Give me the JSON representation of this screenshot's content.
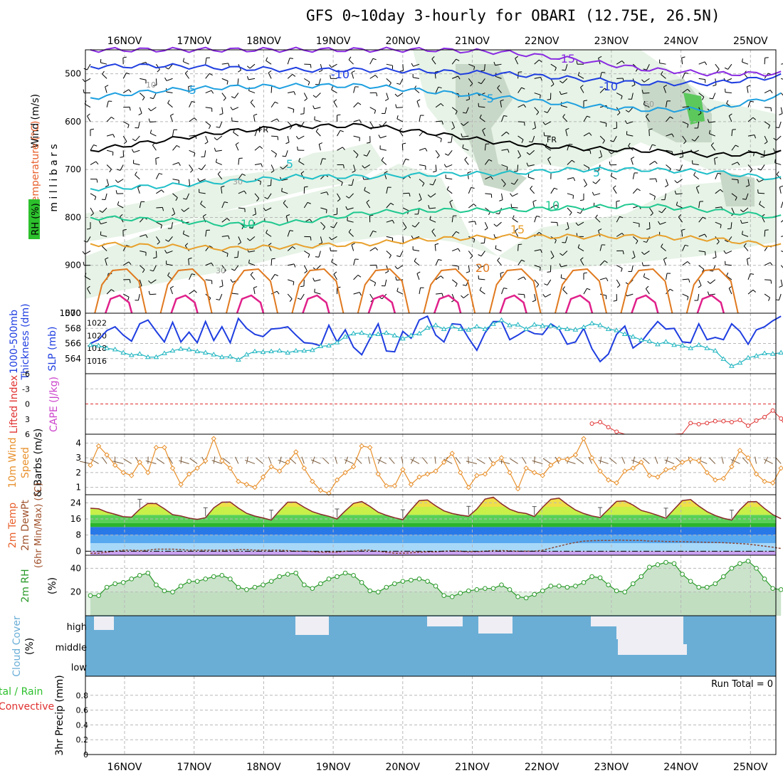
{
  "title": "GFS 0~10day 3-hourly for OBARI (12.75E, 26.5N)",
  "dates": [
    "16NOV",
    "17NOV",
    "18NOV",
    "19NOV",
    "20NOV",
    "21NOV",
    "22NOV",
    "23NOV",
    "24NOV",
    "25NOV"
  ],
  "colors": {
    "temp_label": "#e8602c",
    "wind_label": "#000000",
    "rh_fill": "#2cc02c",
    "thickness": "#1f3ee0",
    "slp": "#1fb5c0",
    "lifted": "#e03030",
    "cape": "#cc44cc",
    "wind10": "#e8902c",
    "rh2m": "#2a9a2a",
    "cloud": "#6aaed6",
    "precip": "#2cc02c"
  },
  "chart_data": [
    {
      "panel": "upper_air",
      "type": "line",
      "ylabel_parts": [
        "Wind (m/s)",
        "Temperature (°C)",
        "RH (%)"
      ],
      "yaxis_title": "m i l l i b a r s",
      "yticks": [
        "500",
        "600",
        "700",
        "800",
        "900",
        "1000"
      ],
      "ylim": [
        1000,
        450
      ],
      "isotherm_labels": [
        "-15",
        "-10",
        "-10",
        "-5",
        "-5",
        "FR",
        "FR",
        "5",
        "5",
        "10",
        "10",
        "15",
        "20"
      ],
      "rh_labels": [
        "10",
        "30",
        "30",
        "50"
      ],
      "isotherms": [
        {
          "name": "-15",
          "values": [
            450,
            450,
            450,
            450,
            450,
            450,
            455,
            470,
            490,
            500,
            500
          ]
        },
        {
          "name": "-10",
          "values": [
            485,
            483,
            488,
            492,
            492,
            495,
            500,
            510,
            520,
            520,
            505
          ]
        },
        {
          "name": "-5",
          "values": [
            550,
            535,
            528,
            525,
            525,
            538,
            550,
            565,
            575,
            575,
            545
          ]
        },
        {
          "name": "FR",
          "values": [
            660,
            640,
            620,
            610,
            608,
            625,
            645,
            655,
            660,
            670,
            665
          ]
        },
        {
          "name": "5",
          "values": [
            740,
            735,
            725,
            715,
            715,
            710,
            708,
            700,
            700,
            705,
            720
          ]
        },
        {
          "name": "10",
          "values": [
            800,
            805,
            815,
            810,
            790,
            785,
            785,
            780,
            775,
            785,
            800
          ]
        },
        {
          "name": "15",
          "values": [
            855,
            860,
            865,
            860,
            855,
            845,
            840,
            840,
            840,
            845,
            860
          ]
        }
      ]
    },
    {
      "panel": "thickness_slp",
      "type": "line",
      "ylabel": [
        "1000-500mb",
        "Thickness (dm)"
      ],
      "ylabel_right": "SLP (mb)",
      "yticks_left": [
        "570",
        "568",
        "566",
        "564"
      ],
      "yticks_right": [
        "1022",
        "1020",
        "1018",
        "1016"
      ],
      "series": [
        {
          "name": "Thickness (dm)",
          "values": [
            566,
            566.5,
            567.7,
            568.2,
            567.1,
            566.3,
            568.6,
            569.1,
            567.6,
            566.2,
            568.8,
            566.2,
            567.5,
            566.1,
            568.9,
            566.4,
            568.2,
            566.1,
            569.3,
            568.0,
            567.2,
            566.9,
            567.9,
            568.0,
            568.2,
            567.1,
            566.1,
            566.0,
            565.7,
            568.4,
            566.2,
            567.8,
            565.5,
            564.5,
            566.6,
            568.6,
            565.0,
            564.9,
            567.6,
            566.7,
            569.1,
            569.6,
            567.1,
            566.2,
            568.6,
            568.5,
            566.7,
            565.1,
            567.4,
            568.9,
            568.9,
            566.5,
            567.1,
            567.8,
            567.3,
            567.2,
            568.6,
            567.9,
            565.9,
            566.2,
            568.0,
            565.3,
            563.6,
            564.6,
            567.2,
            568.3,
            565.4,
            566.2,
            567.6,
            568.9,
            567.9,
            568.0,
            566.2,
            566.1,
            568.6,
            566.5,
            566.8,
            566.5,
            568.6,
            567.6,
            565.9,
            567.8,
            568.2,
            569.0,
            569.6
          ]
        },
        {
          "name": "SLP (mb)",
          "values": [
            1018.5,
            1018.4,
            1018.0,
            1017.8,
            1017.3,
            1016.9,
            1017.1,
            1016.6,
            1016.6,
            1017.2,
            1017.6,
            1017.9,
            1017.8,
            1017.5,
            1017.3,
            1017.0,
            1016.6,
            1016.7,
            1016.2,
            1017.0,
            1017.5,
            1017.4,
            1017.5,
            1017.6,
            1017.3,
            1017.6,
            1017.6,
            1017.7,
            1018.3,
            1018.4,
            1018.9,
            1019.8,
            1020.3,
            1020.4,
            1020.0,
            1020.2,
            1020.4,
            1020.0,
            1019.5,
            1020.0,
            1020.3,
            1021.2,
            1021.6,
            1021.0,
            1021.4,
            1021.0,
            1020.9,
            1021.4,
            1021.0,
            1021.8,
            1022.4,
            1021.6,
            1021.7,
            1021.0,
            1021.7,
            1021.5,
            1021.5,
            1021.2,
            1021.0,
            1020.9,
            1021.3,
            1021.9,
            1021.6,
            1021.0,
            1020.8,
            1020.2,
            1019.8,
            1019.3,
            1019.1,
            1018.6,
            1019.0,
            1018.5,
            1018.4,
            1018.0,
            1018.5,
            1018.0,
            1017.6,
            1016.3,
            1015.2,
            1015.7,
            1016.5,
            1016.8,
            1017.2,
            1017.1,
            1017.3
          ]
        }
      ]
    },
    {
      "panel": "stability",
      "type": "line",
      "ylabel": [
        "Lifted Index",
        "CAPE (J/kg)"
      ],
      "yticks": [
        "-6",
        "-3",
        "0",
        "3",
        "6"
      ],
      "ylim": [
        -6,
        6
      ],
      "series": [
        {
          "name": "Lifted Index",
          "x_from": 61,
          "values": [
            3.9,
            3.6,
            4.6,
            5.5,
            6,
            6,
            6,
            6,
            6,
            6,
            6,
            5.9,
            3.8,
            4,
            3.8,
            3.4,
            3.4,
            3.6,
            3.2,
            4.3,
            3.3,
            2.6,
            1.3,
            2.9,
            6
          ]
        }
      ]
    },
    {
      "panel": "wind10m",
      "type": "line",
      "ylabel": [
        "10m Wind",
        "Speed",
        "& Barbs (m/s)"
      ],
      "yticks": [
        "1",
        "2",
        "3",
        "4"
      ],
      "ylim": [
        0.5,
        4.6
      ],
      "series": [
        {
          "name": "10m Wind Speed (m/s)",
          "values": [
            2.5,
            3.8,
            3.2,
            2.5,
            2.0,
            1.8,
            2.7,
            2.0,
            3.7,
            3.7,
            2.3,
            1.2,
            1.9,
            2.3,
            2.8,
            4.3,
            2.8,
            2.3,
            1.4,
            1.2,
            1.0,
            1.7,
            2.4,
            2.1,
            2.7,
            3.4,
            2.3,
            1.4,
            0.8,
            0.6,
            1.5,
            2.0,
            2.4,
            3.8,
            3.7,
            1.9,
            1.1,
            1.1,
            2.2,
            1.2,
            1.7,
            1.9,
            2.1,
            2.7,
            3.3,
            2.0,
            1.0,
            1.8,
            1.9,
            2.6,
            3.0,
            2.0,
            0.9,
            2.3,
            2.0,
            1.8,
            2.5,
            2.9,
            2.9,
            3.2,
            4.3,
            3.0,
            2.1,
            1.5,
            1.3,
            2.1,
            2.3,
            2.7,
            1.8,
            1.7,
            2.2,
            2.3,
            2.7,
            2.9,
            2.8,
            2.0,
            1.5,
            1.6,
            2.4,
            3.5,
            3.0,
            1.9,
            1.4,
            1.3,
            2.3
          ]
        }
      ]
    },
    {
      "panel": "temp2m",
      "type": "area",
      "ylabel": [
        "2m Temp",
        "2m DewPt",
        "(6hr Min/Max) (°C)"
      ],
      "yticks": [
        "0",
        "8",
        "16",
        "24"
      ],
      "ylim": [
        -2,
        28
      ],
      "series": [
        {
          "name": "2m Temp (°C)",
          "values": [
            21.3,
            21.0,
            19.4,
            18.3,
            17.1,
            16.9,
            20.8,
            23.7,
            23.6,
            21.0,
            18.1,
            17.5,
            16.4,
            15.8,
            16.6,
            21.5,
            24.3,
            24.4,
            21.4,
            18.8,
            17.4,
            16.5,
            15.4,
            20.1,
            24.3,
            24.3,
            21.8,
            19.6,
            18.3,
            17.3,
            16.0,
            20.0,
            23.7,
            24.6,
            22.2,
            19.3,
            17.8,
            16.6,
            15.6,
            20.6,
            25.1,
            25.4,
            22.5,
            20.0,
            18.7,
            17.9,
            17.3,
            20.9,
            25.8,
            26.8,
            23.5,
            20.8,
            19.3,
            18.7,
            17.2,
            21.8,
            25.7,
            26.3,
            23.2,
            20.4,
            18.7,
            17.5,
            16.7,
            20.7,
            24.7,
            24.9,
            22.9,
            20.2,
            19.1,
            17.8,
            16.4,
            20.8,
            25.1,
            25.6,
            22.4,
            19.6,
            17.7,
            16.3,
            15.4,
            20.6,
            24.5,
            24.6,
            21.2,
            18.1,
            16.1
          ]
        },
        {
          "name": "2m DewPt (°C)",
          "values": [
            -1,
            -1,
            -0.5,
            0,
            0.5,
            0.5,
            0.3,
            0.5,
            1,
            1,
            1,
            0.8,
            0.5,
            0.5,
            0.5,
            0.5,
            0.5,
            0.5,
            0.8,
            0.8,
            0.5,
            0.5,
            0.5,
            0.5,
            0.3,
            0,
            0,
            -0.2,
            -0.5,
            -0.5,
            -0.5,
            0,
            0,
            0.5,
            0.5,
            0,
            -0.5,
            -1,
            -1,
            -0.8,
            -0.5,
            -0.3,
            -0.3,
            0,
            0.2,
            0,
            -0.3,
            -0.2,
            0,
            0.3,
            0.3,
            0.2,
            0,
            0,
            0,
            0.5,
            1.5,
            2.5,
            3.5,
            4.3,
            5,
            5.2,
            5.3,
            5.3,
            5.5,
            5.4,
            5.3,
            5.3,
            5,
            5,
            4.8,
            4.8,
            4.7,
            4.6,
            4.5,
            4.4,
            4.3,
            4.2,
            4,
            3.8,
            3.5,
            3,
            2.5,
            2,
            1.3
          ]
        }
      ]
    },
    {
      "panel": "rh2m",
      "type": "area",
      "ylabel": [
        "2m RH",
        "(%)"
      ],
      "yticks": [
        "20",
        "40"
      ],
      "ylim": [
        0,
        51
      ],
      "series": [
        {
          "name": "2m RH (%)",
          "values": [
            17,
            17,
            24,
            27,
            28,
            31,
            34,
            36,
            26,
            21,
            20,
            25,
            29,
            29,
            31,
            33,
            34,
            31,
            24,
            22,
            24,
            26,
            29,
            33,
            35,
            36,
            26,
            23,
            27,
            31,
            33,
            36,
            34,
            28,
            21,
            20,
            24,
            27,
            29,
            30,
            31,
            29,
            25,
            17,
            16,
            19,
            21,
            22,
            23,
            23,
            26,
            22,
            16,
            15,
            18,
            21,
            25,
            25,
            24,
            25,
            28,
            33,
            32,
            26,
            21,
            20,
            27,
            33,
            41,
            43,
            45,
            44,
            35,
            29,
            24,
            24,
            27,
            33,
            40,
            44,
            46,
            40,
            31,
            23,
            22,
            28,
            33,
            35,
            36,
            36,
            35
          ]
        }
      ]
    },
    {
      "panel": "cloud_cover",
      "type": "area",
      "ylabel": [
        "Cloud Cover",
        "(%)"
      ],
      "yticks": [
        "high",
        "middle",
        "low"
      ]
    },
    {
      "panel": "precip",
      "type": "bar",
      "ylabel_parts": [
        "3hr Precip (mm)",
        "tal / Rain",
        "Convective"
      ],
      "yticks": [
        "0",
        "0.2",
        "0.4",
        "0.6",
        "0.8"
      ],
      "ylim": [
        0,
        1
      ],
      "run_total": "Run Total = 0",
      "values": []
    }
  ]
}
